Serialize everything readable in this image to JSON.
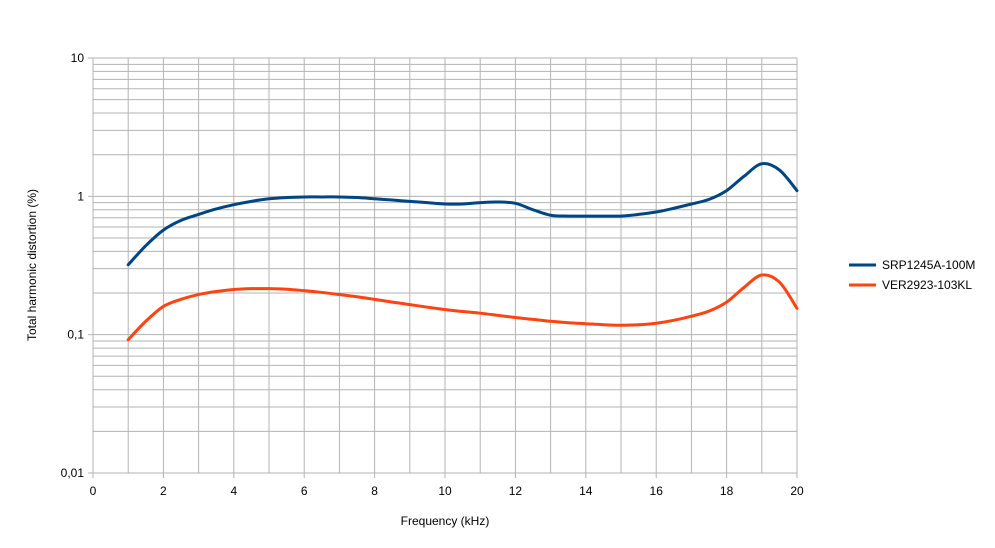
{
  "chart_data": {
    "type": "line",
    "title": "",
    "xlabel": "Frequency (kHz)",
    "ylabel": "Total harmonic distortion (%)",
    "xlim": [
      0,
      20
    ],
    "ylim": [
      0.01,
      10
    ],
    "yscale": "log",
    "x_ticks": [
      "0",
      "2",
      "4",
      "6",
      "8",
      "10",
      "12",
      "14",
      "16",
      "18",
      "20"
    ],
    "y_ticks": [
      "0,01",
      "0,1",
      "1",
      "10"
    ],
    "grid": true,
    "legend_position": "right",
    "series": [
      {
        "name": "SRP1245A-100M",
        "color": "#004586",
        "x": [
          1,
          1.5,
          2,
          2.5,
          3,
          3.5,
          4,
          4.5,
          5,
          5.5,
          6,
          6.5,
          7,
          7.5,
          8,
          8.5,
          9,
          9.5,
          10,
          10.5,
          11,
          11.5,
          12,
          12.5,
          13,
          13.5,
          14,
          14.5,
          15,
          15.5,
          16,
          16.5,
          17,
          17.5,
          18,
          18.5,
          19,
          19.5,
          20
        ],
        "values": [
          0.32,
          0.44,
          0.57,
          0.67,
          0.74,
          0.81,
          0.87,
          0.92,
          0.96,
          0.98,
          0.99,
          0.99,
          0.99,
          0.98,
          0.96,
          0.94,
          0.92,
          0.9,
          0.88,
          0.88,
          0.9,
          0.91,
          0.89,
          0.8,
          0.73,
          0.72,
          0.72,
          0.72,
          0.72,
          0.74,
          0.77,
          0.82,
          0.88,
          0.95,
          1.1,
          1.4,
          1.72,
          1.55,
          1.1
        ]
      },
      {
        "name": "VER2923-103KL",
        "color": "#ff420e",
        "x": [
          1,
          1.5,
          2,
          2.5,
          3,
          3.5,
          4,
          4.5,
          5,
          5.5,
          6,
          6.5,
          7,
          7.5,
          8,
          8.5,
          9,
          9.5,
          10,
          10.5,
          11,
          11.5,
          12,
          12.5,
          13,
          13.5,
          14,
          14.5,
          15,
          15.5,
          16,
          16.5,
          17,
          17.5,
          18,
          18.5,
          19,
          19.5,
          20
        ],
        "values": [
          0.092,
          0.125,
          0.16,
          0.18,
          0.195,
          0.205,
          0.212,
          0.215,
          0.215,
          0.213,
          0.208,
          0.202,
          0.195,
          0.188,
          0.18,
          0.172,
          0.165,
          0.158,
          0.152,
          0.147,
          0.143,
          0.138,
          0.133,
          0.129,
          0.125,
          0.122,
          0.12,
          0.118,
          0.117,
          0.118,
          0.121,
          0.127,
          0.136,
          0.148,
          0.172,
          0.22,
          0.27,
          0.24,
          0.155
        ]
      }
    ]
  }
}
